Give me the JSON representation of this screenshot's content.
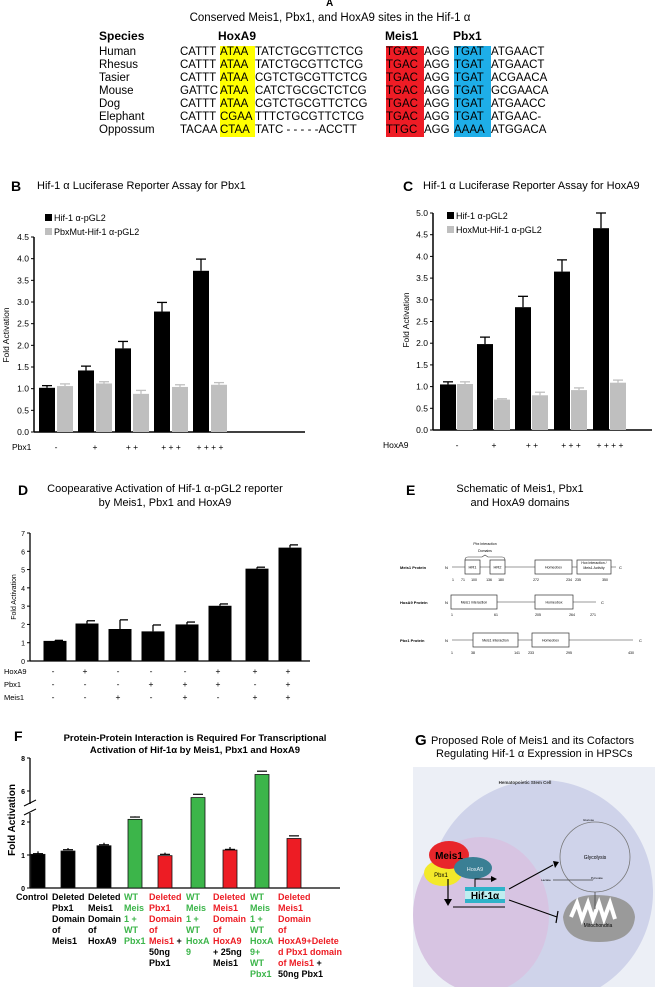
{
  "panel_a": {
    "label": "A",
    "title": "Conserved Meis1, Pbx1, and HoxA9 sites in the Hif-1 α",
    "species_header": "Species",
    "site_headers": {
      "hoxa9": "HoxA9",
      "meis1": "Meis1",
      "pbx1": "Pbx1"
    },
    "highlight_colors": {
      "hoxa9": "#ffff00",
      "meis1": "#ee1c25",
      "pbx1": "#1eaee8"
    },
    "rows": [
      {
        "species": "Human",
        "pre": "CATTT",
        "hox": "ATAA",
        "mid": "TATCTGCGTTCTCG",
        "meis": "TGAC",
        "link": "AGG",
        "pbx": "TGAT",
        "post": "ATGAACT"
      },
      {
        "species": "Rhesus",
        "pre": "CATTT",
        "hox": "ATAA",
        "mid": "TATCTGCGTTCTCG",
        "meis": "TGAC",
        "link": "AGG",
        "pbx": "TGAT",
        "post": "ATGAACT"
      },
      {
        "species": "Tasier",
        "pre": "CATTT",
        "hox": "ATAA",
        "mid": "CGTCTGCGTTCTCG",
        "meis": "TGAC",
        "link": "AGG",
        "pbx": "TGAT",
        "post": "ACGAACA"
      },
      {
        "species": "Mouse",
        "pre": "GATTC",
        "hox": "ATAA",
        "mid": "CATCTGCGCTCTCG",
        "meis": "TGAC",
        "link": "AGG",
        "pbx": "TGAT",
        "post": "GCGAACA"
      },
      {
        "species": "Dog",
        "pre": "CATTT",
        "hox": "ATAA",
        "mid": "CGTCTGCGTTCTCG",
        "meis": "TGAC",
        "link": "AGG",
        "pbx": "TGAT",
        "post": "ATGAACC"
      },
      {
        "species": "Elephant",
        "pre": "CATTT",
        "hox": "CGAA",
        "mid": "TTTCTGCGTTCTCG",
        "meis": "TGAC",
        "link": "AGG",
        "pbx": "TGAT",
        "post": "ATGAAC-"
      },
      {
        "species": "Oppossum",
        "pre": "TACAA",
        "hox": "CTAA",
        "mid": "TATC -  - - - -ACCTT",
        "meis": "TTGC",
        "link": "AGG",
        "pbx": "AAAA",
        "post": "ATGGACA"
      }
    ]
  },
  "chart_data": [
    {
      "panel": "B",
      "type": "bar",
      "title": "Hif-1 α Luciferase Reporter Assay for Pbx1",
      "ylabel": "Fold Activation",
      "xlabel": "Pbx1",
      "ylim": [
        0,
        4.5
      ],
      "yticks": [
        "0.0",
        "0.5",
        "1.0",
        "1.5",
        "2.0",
        "2.5",
        "3.0",
        "3.5",
        "4.0",
        "4.5"
      ],
      "categories": [
        "-",
        "+",
        "+ +",
        "+ + +",
        "+ + + +"
      ],
      "legend": "top-left",
      "series": [
        {
          "name": "Hif-1 α-pGL2",
          "color": "#000000",
          "values": [
            1.02,
            1.42,
            1.93,
            2.78,
            3.72
          ],
          "errors": [
            0.05,
            0.1,
            0.16,
            0.21,
            0.27
          ]
        },
        {
          "name": "PbxMut-Hif-1 α-pGL2",
          "color": "#bfbfbf",
          "values": [
            1.06,
            1.12,
            0.88,
            1.04,
            1.09
          ],
          "errors": [
            0.05,
            0.04,
            0.08,
            0.05,
            0.05
          ]
        }
      ]
    },
    {
      "panel": "C",
      "type": "bar",
      "title": "Hif-1 α Luciferase Reporter Assay for HoxA9",
      "ylabel": "Fold Activation",
      "xlabel": "HoxA9",
      "ylim": [
        0,
        5.0
      ],
      "yticks": [
        "0.0",
        "0.5",
        "1.0",
        "1.5",
        "2.0",
        "2.5",
        "3.0",
        "3.5",
        "4.0",
        "4.5",
        "5.0"
      ],
      "categories": [
        "-",
        "+",
        "+ +",
        "+ + +",
        "+ + + +"
      ],
      "legend": "top-left",
      "series": [
        {
          "name": "Hif-1 α-pGL2",
          "color": "#000000",
          "values": [
            1.05,
            1.98,
            2.83,
            3.65,
            4.65
          ],
          "errors": [
            0.06,
            0.16,
            0.25,
            0.27,
            0.35
          ]
        },
        {
          "name": "HoxMut-Hif-1 α-pGL2",
          "color": "#bfbfbf",
          "values": [
            1.06,
            0.7,
            0.8,
            0.92,
            1.09
          ],
          "errors": [
            0.05,
            0.02,
            0.07,
            0.05,
            0.06
          ]
        }
      ]
    },
    {
      "panel": "D",
      "type": "bar",
      "title": "Coopearative Activation of  Hif-1 α-pGL2 reporter",
      "title_line2": "by Meis1, Pbx1 and HoxA9",
      "ylabel": "Fold Activation",
      "ylim": [
        0,
        7
      ],
      "yticks": [
        "0",
        "1",
        "2",
        "3",
        "4",
        "5",
        "6",
        "7"
      ],
      "condition_rows": [
        {
          "name": "HoxA9",
          "marks": [
            "-",
            "+",
            "-",
            "-",
            "-",
            "+",
            "+",
            "+"
          ]
        },
        {
          "name": "Pbx1",
          "marks": [
            "-",
            "-",
            "-",
            "+",
            "+",
            "+",
            "-",
            "+"
          ]
        },
        {
          "name": "Meis1",
          "marks": [
            "-",
            "-",
            "+",
            "-",
            "+",
            "-",
            "+",
            "+"
          ]
        }
      ],
      "series": [
        {
          "color": "#000000",
          "values": [
            1.1,
            2.05,
            1.75,
            1.62,
            2.0,
            3.02,
            5.05,
            6.2
          ],
          "errors": [
            0.03,
            0.15,
            0.5,
            0.35,
            0.13,
            0.1,
            0.08,
            0.15
          ]
        }
      ]
    },
    {
      "panel": "F",
      "type": "bar",
      "title": "Protein-Protein Interaction is Required For Transcriptional",
      "title_line2": "Activation of Hif-1α by Meis1, Pbx1 and HoxA9",
      "ylabel": "Fold Activation",
      "y_axis_break": [
        2,
        6
      ],
      "ylim": [
        0,
        8
      ],
      "yticks": [
        "0",
        "1",
        "2",
        "6",
        "8"
      ],
      "colors": {
        "black": "#000000",
        "green": "#3cb54a",
        "red": "#ed1c24"
      },
      "bars": [
        {
          "value": 1.02,
          "error": 0.02,
          "color": "black",
          "label": [
            [
              [
                "Control",
                "black"
              ]
            ]
          ]
        },
        {
          "value": 1.12,
          "error": 0.04,
          "color": "black",
          "label": [
            [
              [
                "Deleted",
                "black"
              ]
            ],
            [
              [
                "Pbx1",
                "black"
              ]
            ],
            [
              [
                "Domain",
                "black"
              ]
            ],
            [
              [
                "of",
                "black"
              ]
            ],
            [
              [
                "Meis1",
                "black"
              ]
            ]
          ]
        },
        {
          "value": 1.28,
          "error": 0.03,
          "color": "black",
          "label": [
            [
              [
                "Deleted",
                "black"
              ]
            ],
            [
              [
                "Meis1",
                "black"
              ]
            ],
            [
              [
                "Domain",
                "black"
              ]
            ],
            [
              [
                "of",
                "black"
              ]
            ],
            [
              [
                "HoxA9",
                "black"
              ]
            ]
          ]
        },
        {
          "value": 2.08,
          "error": 0.07,
          "color": "green",
          "label": [
            [
              [
                "WT",
                "green"
              ]
            ],
            [
              [
                "Meis",
                "green"
              ]
            ],
            [
              [
                "1 +",
                "green"
              ]
            ],
            [
              [
                "WT",
                "green"
              ]
            ],
            [
              [
                "Pbx1",
                "green"
              ]
            ]
          ]
        },
        {
          "value": 0.98,
          "error": 0.04,
          "color": "red",
          "label": [
            [
              [
                "Deleted",
                "red"
              ]
            ],
            [
              [
                "Pbx1",
                "red"
              ]
            ],
            [
              [
                "Domain",
                "red"
              ]
            ],
            [
              [
                "of",
                "red"
              ]
            ],
            [
              [
                "Meis1",
                "red"
              ],
              [
                " +",
                "black"
              ]
            ],
            [
              [
                "50ng",
                "black"
              ]
            ],
            [
              [
                "Pbx1",
                "black"
              ]
            ]
          ]
        },
        {
          "value": 5.6,
          "error": 0.2,
          "color": "green",
          "label": [
            [
              [
                "WT",
                "green"
              ]
            ],
            [
              [
                "Meis",
                "green"
              ]
            ],
            [
              [
                "1 +",
                "green"
              ]
            ],
            [
              [
                "WT",
                "green"
              ]
            ],
            [
              [
                "HoxA",
                "green"
              ]
            ],
            [
              [
                "9",
                "green"
              ]
            ]
          ]
        },
        {
          "value": 1.15,
          "error": 0.02,
          "color": "red",
          "label": [
            [
              [
                "Deleted",
                "red"
              ]
            ],
            [
              [
                "Meis1",
                "red"
              ]
            ],
            [
              [
                "Domain",
                "red"
              ]
            ],
            [
              [
                "of",
                "red"
              ]
            ],
            [
              [
                "HoxA9",
                "red"
              ]
            ],
            [
              [
                "+ 25ng",
                "black"
              ]
            ],
            [
              [
                "Meis1",
                "black"
              ]
            ]
          ]
        },
        {
          "value": 7.0,
          "error": 0.2,
          "color": "green",
          "label": [
            [
              [
                "WT",
                "green"
              ]
            ],
            [
              [
                "Meis",
                "green"
              ]
            ],
            [
              [
                "1 +",
                "green"
              ]
            ],
            [
              [
                "WT",
                "green"
              ]
            ],
            [
              [
                "HoxA",
                "green"
              ]
            ],
            [
              [
                "9+",
                "green"
              ]
            ],
            [
              [
                "WT",
                "green"
              ]
            ],
            [
              [
                "Pbx1",
                "green"
              ]
            ]
          ]
        },
        {
          "value": 1.5,
          "error": 0.08,
          "color": "red",
          "label": [
            [
              [
                "Deleted",
                "red"
              ]
            ],
            [
              [
                "Meis1",
                "red"
              ]
            ],
            [
              [
                "Domain",
                "red"
              ]
            ],
            [
              [
                "of",
                "red"
              ]
            ],
            [
              [
                "HoxA9+Delete",
                "red"
              ]
            ],
            [
              [
                "d Pbx1 domain",
                "red"
              ]
            ],
            [
              [
                "of Meis1",
                "red"
              ],
              [
                " +",
                "black"
              ]
            ],
            [
              [
                "50ng Pbx1",
                "black"
              ]
            ]
          ]
        }
      ]
    }
  ],
  "panel_labels": {
    "b": "B",
    "c": "C",
    "d": "D",
    "e": "E",
    "f": "F",
    "g": "G"
  },
  "panel_e": {
    "title_line1": "Schematic of Meis1, Pbx1",
    "title_line2": "and HoxA9 domains",
    "brace_label_1": "Pbx Interaction",
    "brace_label_2": "Domains",
    "terminal_n": "N",
    "terminal_c": "C",
    "proteins": [
      {
        "name": "Meis1 Protein",
        "domains": [
          "HR1",
          "HR2",
          "Homeobox",
          "Hox interaction / Meis1 Activity"
        ],
        "positions": [
          "1",
          "71",
          "100",
          "136",
          "180",
          "272",
          "234",
          "235",
          "350"
        ]
      },
      {
        "name": "HoxA9 Protein",
        "domains": [
          "Meis1 interaction",
          "Homeobox"
        ],
        "positions": [
          "1",
          "61",
          "205",
          "264",
          "271"
        ]
      },
      {
        "name": "Pbx1 Protein",
        "domains": [
          "Meis1 interaction",
          "Homeobox"
        ],
        "positions": [
          "1",
          "38",
          "141",
          "233",
          "295",
          "430"
        ]
      }
    ]
  },
  "panel_g": {
    "title_line1": "Proposed Role of Meis1 and its Cofactors",
    "title_line2": "Regulating Hif-1 α Expression in HPSCs",
    "cell_label": "Hematopoietic Stem Cell",
    "meis1": "Meis1",
    "pbx1": "Pbx1",
    "hoxa9": "HoxA9",
    "hif": "Hif-1α",
    "glycolysis": "Glycolysis",
    "glucose": "Glucose",
    "lactate": "Lactate",
    "pyruvate": "Pyruvate",
    "mitochondria": "Mitochondria",
    "colors": {
      "meis1": "#e8262b",
      "pbx1": "#f3e92a",
      "hoxa9": "#3a7f94",
      "hif": "#2fb3c9"
    }
  }
}
